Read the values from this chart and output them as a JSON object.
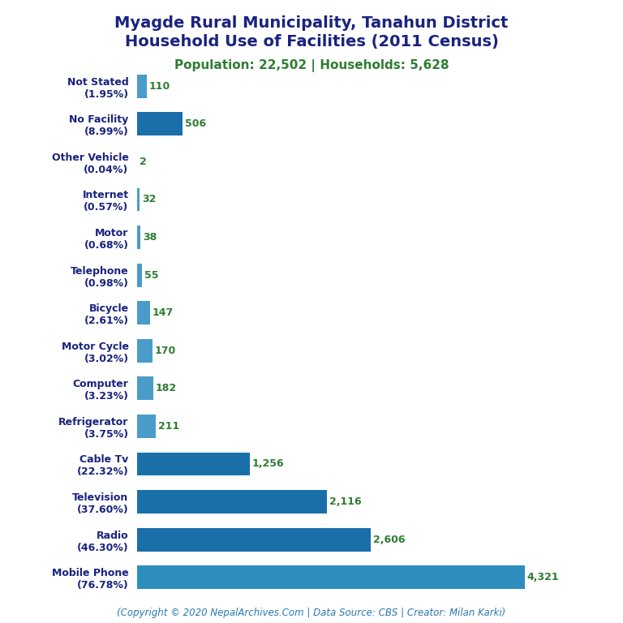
{
  "title_line1": "Myagde Rural Municipality, Tanahun District",
  "title_line2": "Household Use of Facilities (2011 Census)",
  "subtitle": "Population: 22,502 | Households: 5,628",
  "footer": "(Copyright © 2020 NepalArchives.Com | Data Source: CBS | Creator: Milan Karki)",
  "categories": [
    "Mobile Phone\n(76.78%)",
    "Radio\n(46.30%)",
    "Television\n(37.60%)",
    "Cable Tv\n(22.32%)",
    "Refrigerator\n(3.75%)",
    "Computer\n(3.23%)",
    "Motor Cycle\n(3.02%)",
    "Bicycle\n(2.61%)",
    "Telephone\n(0.98%)",
    "Motor\n(0.68%)",
    "Internet\n(0.57%)",
    "Other Vehicle\n(0.04%)",
    "No Facility\n(8.99%)",
    "Not Stated\n(1.95%)"
  ],
  "values": [
    4321,
    2606,
    2116,
    1256,
    211,
    182,
    170,
    147,
    55,
    38,
    32,
    2,
    506,
    110
  ],
  "bar_colors": [
    "#2e8fbe",
    "#1a6fa8",
    "#1a6fa8",
    "#1a6fa8",
    "#4a9cc8",
    "#4a9cc8",
    "#4a9cc8",
    "#4a9cc8",
    "#4a9cc8",
    "#4a9cc8",
    "#4a9cc8",
    "#4a9cc8",
    "#1a6fa8",
    "#4a9cc8"
  ],
  "title_color": "#1a237e",
  "subtitle_color": "#2e7d32",
  "footer_color": "#2878b0",
  "value_color": "#2e7d32",
  "label_color": "#1a237e",
  "bg_color": "#ffffff",
  "xlim": [
    0,
    5000
  ],
  "title_fontsize": 14,
  "subtitle_fontsize": 11,
  "label_fontsize": 9,
  "value_fontsize": 9,
  "footer_fontsize": 8.5
}
